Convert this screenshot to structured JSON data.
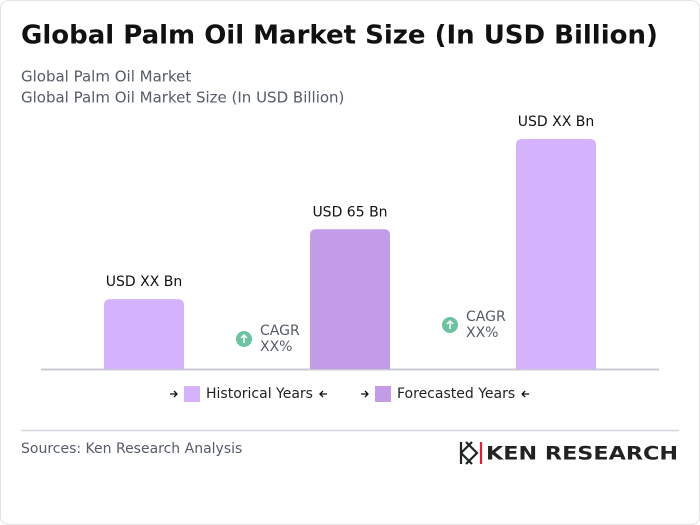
{
  "chart_data": {
    "type": "bar",
    "title": "Global Palm Oil Market Size (In USD Billion)",
    "subtitle": [
      "Global Palm Oil Market",
      "Global Palm Oil Market Size (In USD Billion)"
    ],
    "values": [
      32.5,
      65,
      107
    ],
    "value_labels": [
      "USD XX Bn",
      "USD 65 Bn",
      "USD XX Bn"
    ],
    "colors": [
      "#d4b3fc",
      "#c39ce8",
      "#d4b3fc"
    ],
    "annotations": [
      [
        "CAGR",
        "XX%"
      ],
      [
        "CAGR",
        "XX%"
      ]
    ],
    "legend": [
      {
        "name": "Historical Years",
        "color": "#d4b3fc"
      },
      {
        "name": "Forecasted Years",
        "color": "#c39ce8"
      }
    ],
    "source": "Sources: Ken Research Analysis",
    "logo": "KEN RESEARCH"
  }
}
